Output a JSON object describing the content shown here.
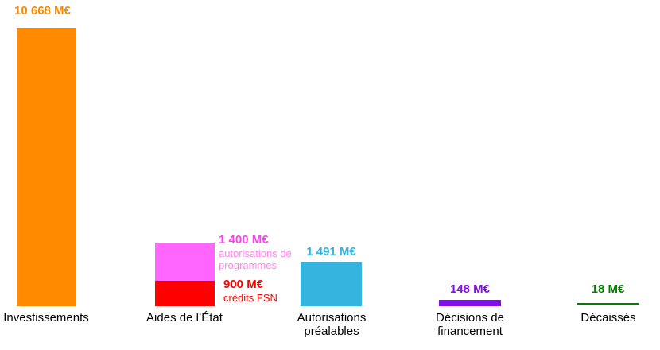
{
  "chart_data": {
    "type": "bar",
    "title": "",
    "unit": "M€",
    "ylim": [
      0,
      10668
    ],
    "grid": false,
    "legend": "none",
    "axes_visible": false,
    "categories": [
      "Investissements",
      "Aides de l’État",
      "Autorisations préalables",
      "Décisions de financement",
      "Décaissés"
    ],
    "series": [
      {
        "name": "Investissements",
        "category": "Investissements",
        "value": 10668,
        "data_label": "10 668 M€",
        "color": "#FF8A00"
      },
      {
        "name": "autorisations de programmes",
        "category": "Aides de l’État",
        "stack": "Aides de l’État",
        "value": 1400,
        "data_label": "1 400 M€",
        "color": "#FF66FF"
      },
      {
        "name": "crédits FSN",
        "category": "Aides de l’État",
        "stack": "Aides de l’État",
        "value": 900,
        "data_label": "900 M€",
        "color": "#FF0000"
      },
      {
        "name": "Autorisations préalables",
        "category": "Autorisations préalables",
        "value": 1491,
        "data_label": "1 491 M€",
        "color": "#35B4E0"
      },
      {
        "name": "Décisions de financement",
        "category": "Décisions de financement",
        "value": 148,
        "data_label": "148 M€",
        "color": "#8010E8"
      },
      {
        "name": "Décaissés",
        "category": "Décaissés",
        "value": 18,
        "data_label": "18 M€",
        "color": "#008000"
      }
    ]
  },
  "bars": {
    "investissements": {
      "value_label": "10 668 M€",
      "color": "#FF8A00"
    },
    "aides_programmes": {
      "value_label": "1 400 M€",
      "sub_label": "autorisations de\nprogrammes",
      "color": "#FF66FF",
      "label_color": "#FF40F0",
      "sub_label_color": "#FF85F0"
    },
    "aides_fsn": {
      "value_label": "900 M€",
      "sub_label": "crédits FSN",
      "color": "#FF0000"
    },
    "autorisations": {
      "value_label": "1 491 M€",
      "color": "#35B4E0"
    },
    "decisions": {
      "value_label": "148 M€",
      "color": "#8010E8"
    },
    "decaisses": {
      "value_label": "18 M€",
      "color": "#008000"
    }
  },
  "x_labels": {
    "investissements": "Investissements",
    "aides": "Aides de l’État",
    "autorisations": "Autorisations\npréalables",
    "decisions": "Décisions de\nfinancement",
    "decaisses": "Décaissés"
  }
}
